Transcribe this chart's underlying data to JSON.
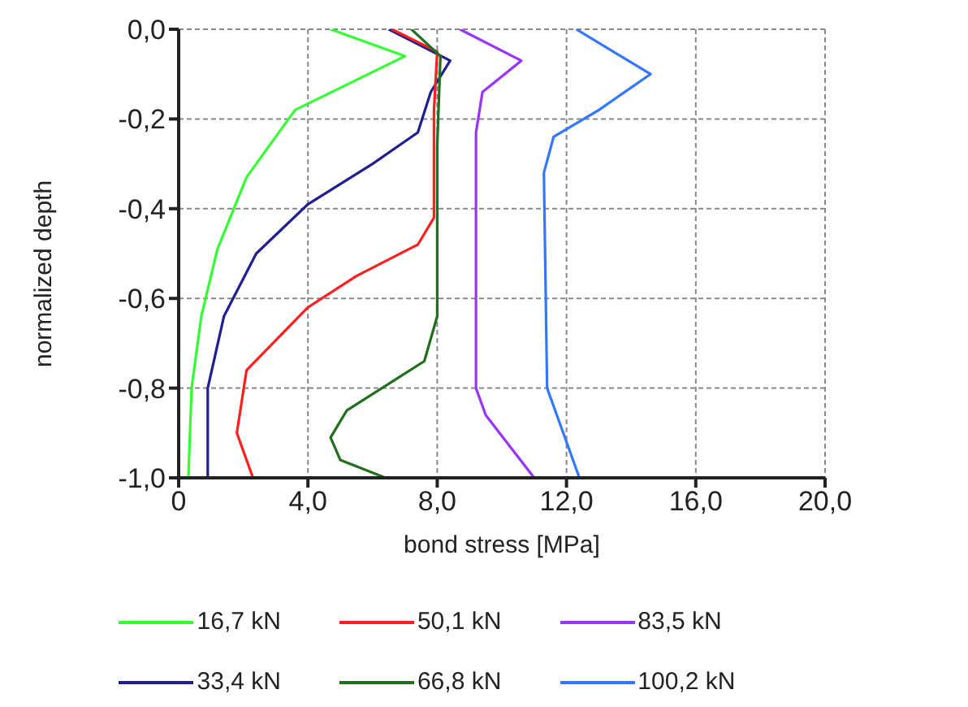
{
  "chart_data": {
    "type": "line",
    "xlabel": "bond stress [MPa]",
    "ylabel": "normalized depth",
    "xlim": [
      0,
      20
    ],
    "xticks": [
      {
        "value": 0,
        "label": "0"
      },
      {
        "value": 4,
        "label": "4,0"
      },
      {
        "value": 8,
        "label": "8,0"
      },
      {
        "value": 12,
        "label": "12,0"
      },
      {
        "value": 16,
        "label": "16,0"
      },
      {
        "value": 20,
        "label": "20,0"
      }
    ],
    "ylim": [
      -1,
      0
    ],
    "yticks": [
      {
        "value": -1,
        "label": "-1,0"
      },
      {
        "value": -0.8,
        "label": "-0,8"
      },
      {
        "value": -0.6,
        "label": "-0,6"
      },
      {
        "value": -0.4,
        "label": "-0,4"
      },
      {
        "value": -0.2,
        "label": "-0,2"
      },
      {
        "value": 0,
        "label": "0,0"
      }
    ],
    "grid": true,
    "legend": "bottom",
    "marker": "none",
    "line_style": "solid",
    "series": [
      {
        "name": "16,7 kN",
        "color": "#33ff33",
        "x": [
          4.7,
          7.0,
          3.6,
          2.1,
          1.2,
          0.7,
          0.4,
          0.3
        ],
        "values": [
          0,
          -0.06,
          -0.18,
          -0.33,
          -0.49,
          -0.64,
          -0.8,
          -1.0
        ]
      },
      {
        "name": "33,4 kN",
        "color": "#1f1f8f",
        "x": [
          6.5,
          8.4,
          7.8,
          7.4,
          6.0,
          4.0,
          2.4,
          1.4,
          0.9,
          0.9
        ],
        "values": [
          0,
          -0.07,
          -0.14,
          -0.23,
          -0.3,
          -0.39,
          -0.5,
          -0.64,
          -0.8,
          -1.0
        ]
      },
      {
        "name": "50,1 kN",
        "color": "#ff1f1f",
        "x": [
          6.6,
          8.0,
          7.9,
          7.9,
          7.4,
          5.5,
          4.0,
          2.1,
          1.8,
          2.3
        ],
        "values": [
          0,
          -0.05,
          -0.18,
          -0.42,
          -0.48,
          -0.55,
          -0.62,
          -0.76,
          -0.9,
          -1.0
        ]
      },
      {
        "name": "66,8 kN",
        "color": "#1f6f1f",
        "x": [
          7.2,
          8.1,
          8.0,
          8.0,
          7.6,
          5.2,
          4.7,
          5.0,
          6.4
        ],
        "values": [
          0,
          -0.06,
          -0.26,
          -0.64,
          -0.74,
          -0.85,
          -0.91,
          -0.96,
          -1.0
        ]
      },
      {
        "name": "83,5 kN",
        "color": "#9933ff",
        "x": [
          8.7,
          10.6,
          9.4,
          9.2,
          9.2,
          9.5,
          11.0
        ],
        "values": [
          0,
          -0.07,
          -0.14,
          -0.23,
          -0.8,
          -0.86,
          -1.0
        ]
      },
      {
        "name": "100,2 kN",
        "color": "#3377ff",
        "x": [
          12.3,
          14.6,
          13.0,
          11.6,
          11.3,
          11.4,
          11.8,
          12.4
        ],
        "values": [
          0,
          -0.1,
          -0.18,
          -0.24,
          -0.32,
          -0.8,
          -0.88,
          -1.0
        ]
      }
    ]
  }
}
